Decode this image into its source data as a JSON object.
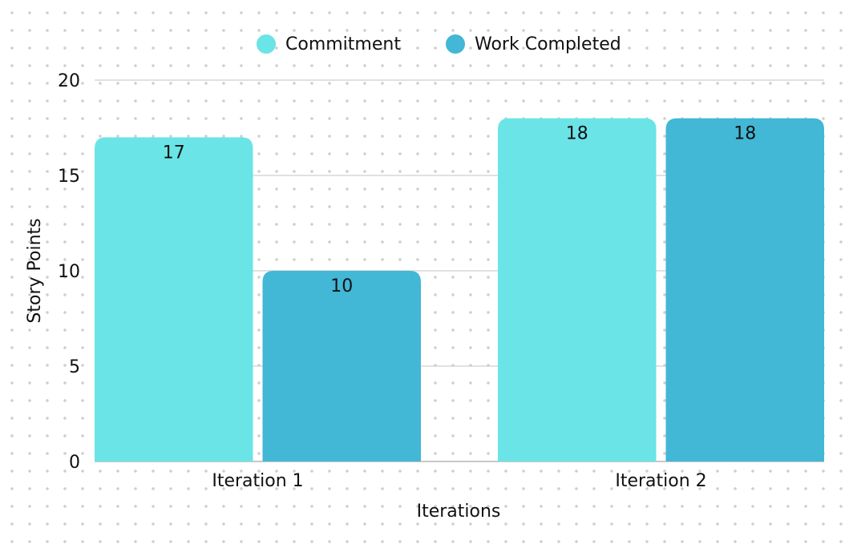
{
  "chart_data": {
    "type": "bar",
    "categories": [
      "Iteration 1",
      "Iteration 2"
    ],
    "series": [
      {
        "name": "Commitment",
        "values": [
          17,
          18
        ],
        "color": "#6ae4e7"
      },
      {
        "name": "Work Completed",
        "values": [
          10,
          18
        ],
        "color": "#42b7d6"
      }
    ],
    "xlabel": "Iterations",
    "ylabel": "Story Points",
    "ylim": [
      0,
      20
    ],
    "yticks": [
      0,
      5,
      10,
      15,
      20
    ],
    "grid": true,
    "legend_position": "top-center",
    "data_labels": true,
    "gridline_color": "#cfcfcf",
    "axis_line_color": "#b5b5b5"
  }
}
